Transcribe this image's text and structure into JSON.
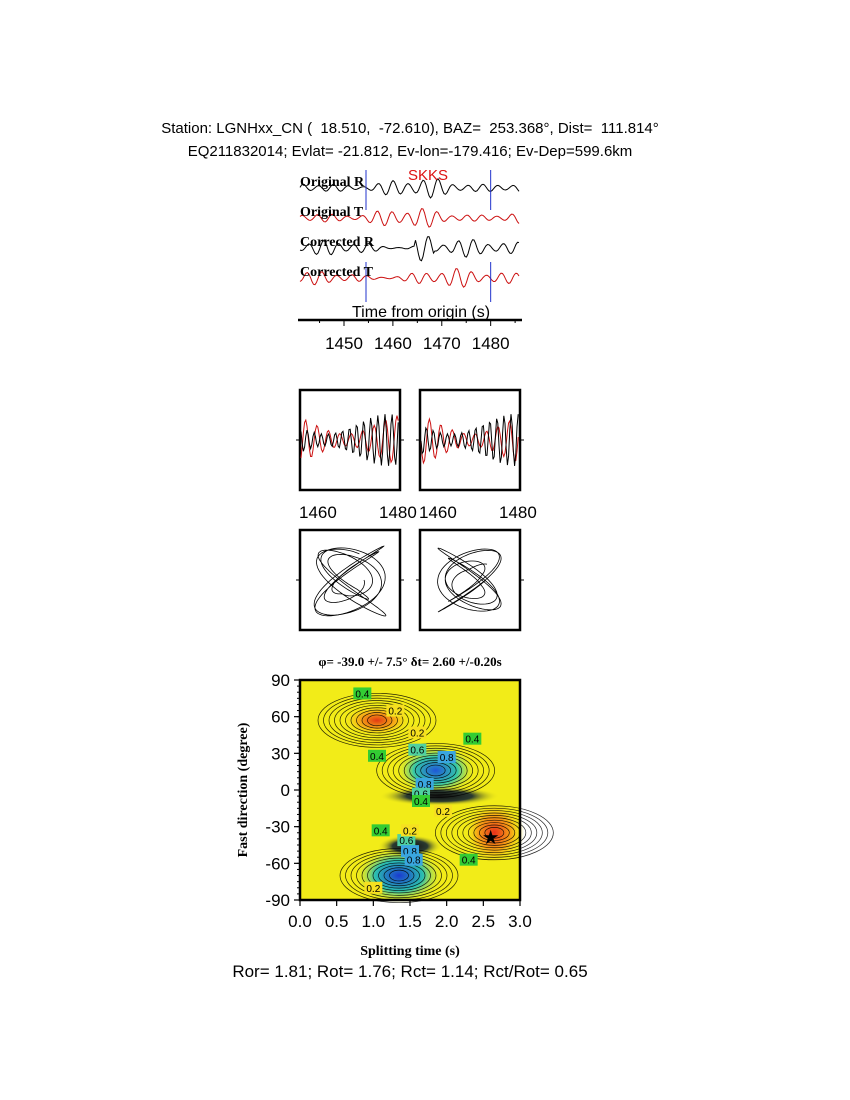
{
  "header": {
    "station_line": "Station: LGNHxx_CN (  18.510,  -72.610), BAZ=  253.368°, Dist=  111.814°",
    "event_line": "EQ211832014; Evlat= -21.812, Ev-lon=-179.416; Ev-Dep=599.6km"
  },
  "traces": {
    "phase_label": "SKKS",
    "labels": [
      "Original R",
      "Original T",
      "Corrected R",
      "Corrected T"
    ],
    "time_label": "Time from origin (s)",
    "xticks": [
      1450,
      1460,
      1470,
      1480
    ],
    "xlim": [
      1441,
      1486
    ],
    "window": [
      1454.5,
      1480.0
    ]
  },
  "waveform_panels": {
    "xticks": [
      "1460",
      "1480",
      "1460",
      "1480"
    ]
  },
  "grid_search": {
    "title": "φ= -39.0 +/- 7.5° δt= 2.60 +/-0.20s",
    "ylabel": "Fast direction (degree)",
    "xlabel": "Splitting time (s)",
    "yticks": [
      "90",
      "60",
      "30",
      "0",
      "-30",
      "-60",
      "-90"
    ],
    "xticks": [
      "0.0",
      "0.5",
      "1.0",
      "1.5",
      "2.0",
      "2.5",
      "3.0"
    ],
    "best": {
      "dt": 2.6,
      "phi": -39.0
    },
    "contour_labels": [
      "0.4",
      "0.2",
      "0.2",
      "0.4",
      "0.6",
      "0.8",
      "0.4",
      "0.8",
      "0.6",
      "0.4",
      "0.2",
      "0.4",
      "0.6",
      "0.8",
      "0.8",
      "0.4",
      "0.2",
      "0.2"
    ],
    "xlim": [
      0,
      3
    ],
    "ylim": [
      -90,
      90
    ]
  },
  "footer": {
    "ratios": "Ror= 1.81; Rot= 1.76; Rct= 1.14; Rct/Rot= 0.65"
  },
  "colors": {
    "radial": "#000000",
    "transverse": "#cc1111",
    "marker": "#2233cc",
    "phase": "#dd1111"
  }
}
